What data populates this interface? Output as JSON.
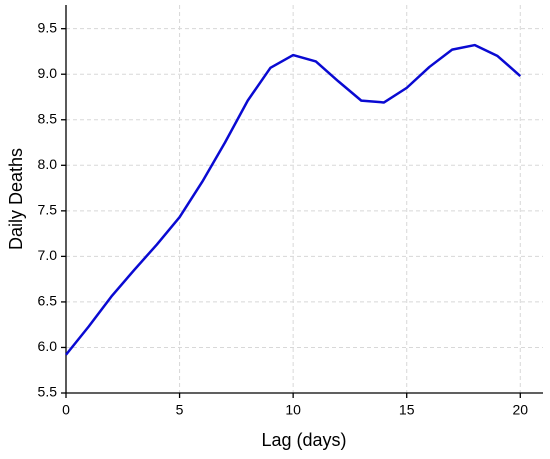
{
  "chart_data": {
    "type": "line",
    "x_label": "Lag (days)",
    "y_label": "Daily Deaths",
    "x": [
      0,
      1,
      2,
      3,
      4,
      5,
      6,
      7,
      8,
      9,
      10,
      11,
      12,
      13,
      14,
      15,
      16,
      17,
      18,
      19,
      20
    ],
    "series": [
      {
        "color": "#0a0ad2",
        "values": [
          5.92,
          6.23,
          6.56,
          6.85,
          7.13,
          7.43,
          7.82,
          8.25,
          8.71,
          9.07,
          9.21,
          9.14,
          8.92,
          8.71,
          8.69,
          8.85,
          9.08,
          9.27,
          9.32,
          9.2,
          8.98
        ]
      }
    ],
    "xlim": [
      0,
      21
    ],
    "ylim": [
      5.5,
      9.76
    ],
    "xticks": [
      0,
      5,
      10,
      15,
      20
    ],
    "yticks": [
      5.5,
      {
        "value": 6,
        "label": "6.0"
      },
      6.5,
      {
        "value": 7,
        "label": "7.0"
      },
      7.5,
      {
        "value": 8,
        "label": "8.0"
      },
      8.5,
      {
        "value": 9,
        "label": "9.0"
      },
      9.5
    ],
    "grid": true
  }
}
